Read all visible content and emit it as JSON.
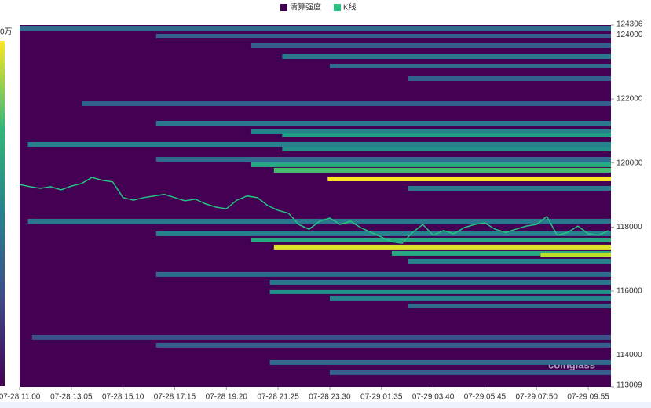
{
  "chart_data": {
    "type": "heatmap",
    "colorbar_label": "0万",
    "watermark": "coinglass",
    "xlim": [
      "07-28 11:00",
      "07-29 10:50"
    ],
    "xticks": [
      "07-28 11:00",
      "07-28 13:05",
      "07-28 15:10",
      "07-28 17:15",
      "07-28 19:20",
      "07-28 21:25",
      "07-28 23:30",
      "07-29 01:35",
      "07-29 03:40",
      "07-29 05:45",
      "07-29 07:50",
      "07-29 09:55"
    ],
    "ylim": [
      113009,
      124306
    ],
    "yticks": [
      113009,
      114000,
      116000,
      118000,
      120000,
      122000,
      124000,
      124306
    ],
    "clim": [
      0,
      1
    ],
    "colormap": [
      "#440154",
      "#482878",
      "#3e4989",
      "#31688e",
      "#26828e",
      "#1f9e89",
      "#35b779",
      "#6ece58",
      "#b5de2b",
      "#fde725"
    ],
    "series": [
      {
        "name": "清算强度",
        "color": "#440154",
        "prices": [
          124208,
          123963,
          123669,
          123326,
          123032,
          122640,
          121856,
          121243,
          120974,
          120876,
          120582,
          120435,
          120116,
          119945,
          119774,
          119504,
          119210,
          118181,
          117789,
          117593,
          117373,
          117177,
          117128,
          116932,
          116516,
          116270,
          115976,
          115780,
          115535,
          114555,
          114310,
          113771,
          113453
        ],
        "starts": [
          "07-28 11:00",
          "07-28 16:30",
          "07-28 20:20",
          "07-28 21:35",
          "07-28 23:30",
          "07-29 02:40",
          "07-28 13:30",
          "07-28 16:30",
          "07-28 20:20",
          "07-28 21:35",
          "07-28 11:20",
          "07-28 21:35",
          "07-28 16:30",
          "07-28 20:20",
          "07-28 21:15",
          "07-28 23:25",
          "07-29 02:40",
          "07-28 11:20",
          "07-28 16:30",
          "07-28 20:20",
          "07-28 21:15",
          "07-29 02:00",
          "07-29 08:00",
          "07-29 02:40",
          "07-28 16:30",
          "07-28 21:05",
          "07-28 21:05",
          "07-28 23:30",
          "07-29 02:40",
          "07-28 11:30",
          "07-28 16:30",
          "07-28 21:05",
          "07-28 23:30"
        ],
        "intensity": [
          0.35,
          0.3,
          0.3,
          0.4,
          0.35,
          0.3,
          0.3,
          0.4,
          0.45,
          0.55,
          0.45,
          0.5,
          0.35,
          0.6,
          0.7,
          1.0,
          0.4,
          0.4,
          0.45,
          0.6,
          0.95,
          0.6,
          0.9,
          0.45,
          0.35,
          0.4,
          0.5,
          0.45,
          0.35,
          0.25,
          0.3,
          0.35,
          0.3
        ]
      },
      {
        "name": "K线",
        "color": "#26c281",
        "x": [
          "07-28 11:00",
          "07-28 11:25",
          "07-28 11:50",
          "07-28 12:15",
          "07-28 12:40",
          "07-28 13:05",
          "07-28 13:30",
          "07-28 13:55",
          "07-28 14:20",
          "07-28 14:45",
          "07-28 15:10",
          "07-28 15:35",
          "07-28 16:00",
          "07-28 16:25",
          "07-28 16:50",
          "07-28 17:15",
          "07-28 17:40",
          "07-28 18:05",
          "07-28 18:30",
          "07-28 18:55",
          "07-28 19:20",
          "07-28 19:45",
          "07-28 20:10",
          "07-28 20:35",
          "07-28 21:00",
          "07-28 21:25",
          "07-28 21:50",
          "07-28 22:15",
          "07-28 22:40",
          "07-28 23:05",
          "07-28 23:30",
          "07-28 23:55",
          "07-29 00:20",
          "07-29 00:45",
          "07-29 01:10",
          "07-29 01:35",
          "07-29 02:00",
          "07-29 02:25",
          "07-29 02:50",
          "07-29 03:15",
          "07-29 03:40",
          "07-29 04:05",
          "07-29 04:30",
          "07-29 04:55",
          "07-29 05:20",
          "07-29 05:45",
          "07-29 06:10",
          "07-29 06:35",
          "07-29 07:00",
          "07-29 07:25",
          "07-29 07:50",
          "07-29 08:15",
          "07-29 08:40",
          "07-29 09:05",
          "07-29 09:30",
          "07-29 09:55",
          "07-29 10:20",
          "07-29 10:45"
        ],
        "values": [
          119330,
          119260,
          119210,
          119260,
          119160,
          119280,
          119360,
          119550,
          119460,
          119410,
          118920,
          118840,
          118920,
          118970,
          119020,
          118920,
          118820,
          118870,
          118720,
          118620,
          118570,
          118840,
          118970,
          118920,
          118670,
          118520,
          118430,
          118080,
          117930,
          118180,
          118280,
          118080,
          118180,
          117980,
          117830,
          117690,
          117540,
          117490,
          117830,
          118080,
          117740,
          117890,
          117790,
          117980,
          118080,
          118130,
          117930,
          117830,
          117930,
          118030,
          118080,
          118330,
          117740,
          117830,
          118030,
          117790,
          117740,
          117890
        ]
      }
    ]
  }
}
